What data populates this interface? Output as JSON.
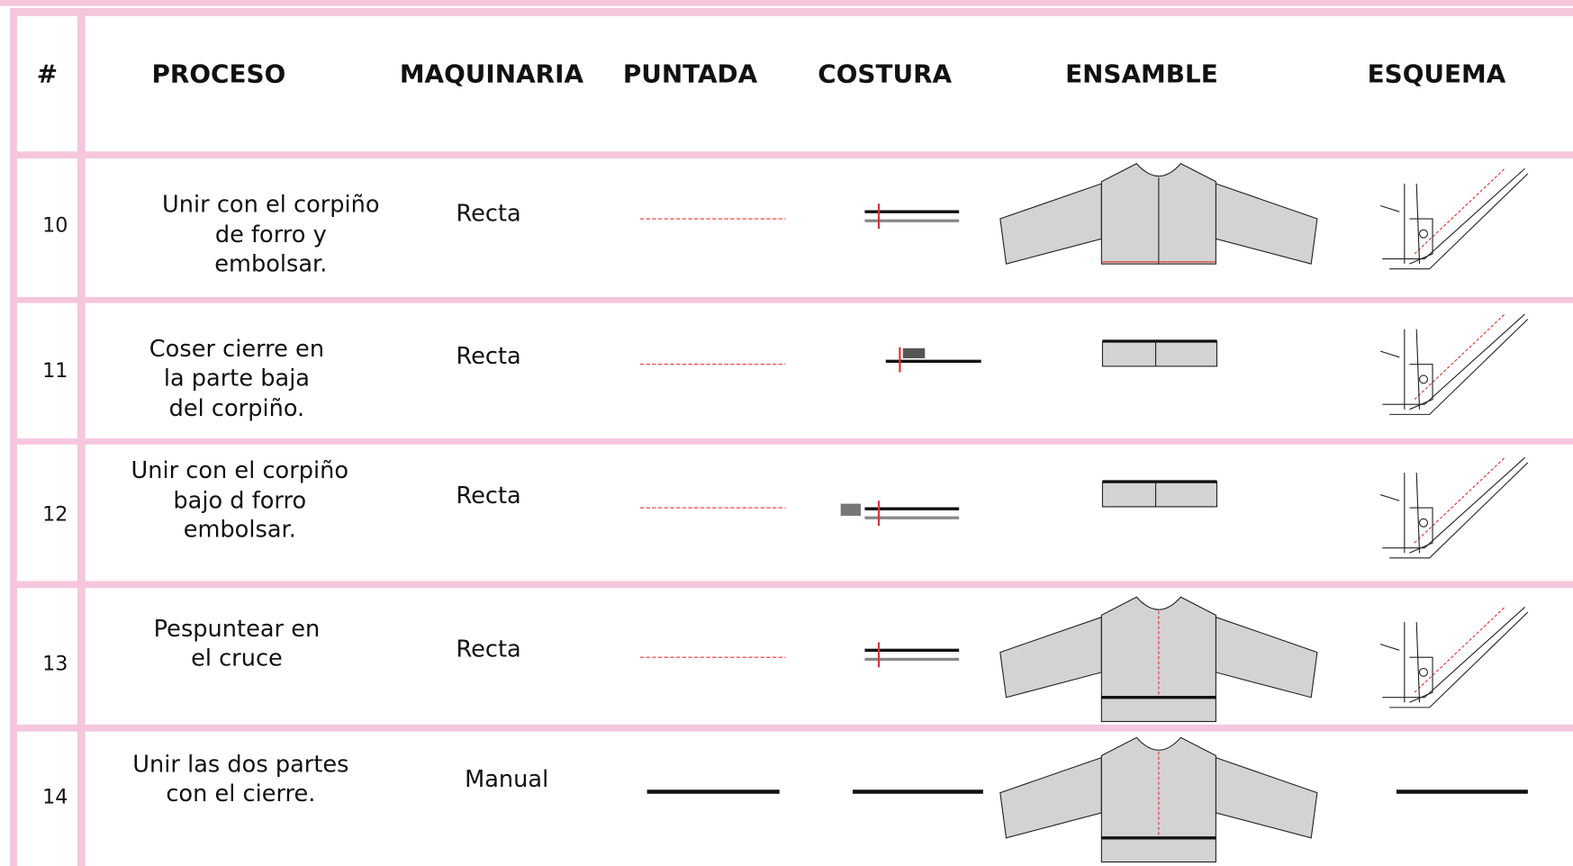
{
  "header": {
    "columns": [
      "#",
      "PROCESO",
      "MAQUINARIA",
      "PUNTADA",
      "COSTURA",
      "ENSAMBLE",
      "ESQUEMA"
    ]
  },
  "rows": [
    {
      "number": "10",
      "process": [
        "Unir con el corpiño",
        "de forro y",
        "embolsar."
      ],
      "machine": "Recta"
    },
    {
      "number": "11",
      "process": [
        "Coser cierre en",
        "la parte baja",
        "del corpiño."
      ],
      "machine": "Recta"
    },
    {
      "number": "12",
      "process": [
        "Unir con el corpiño",
        "bajo d forro",
        "embolsar."
      ],
      "machine": "Recta"
    },
    {
      "number": "13",
      "process": [
        "Pespuntear en",
        "el cruce"
      ],
      "machine": "Recta"
    },
    {
      "number": "14",
      "process": [
        "Unir las dos partes",
        "con el cierre."
      ],
      "machine": "Manual"
    }
  ]
}
